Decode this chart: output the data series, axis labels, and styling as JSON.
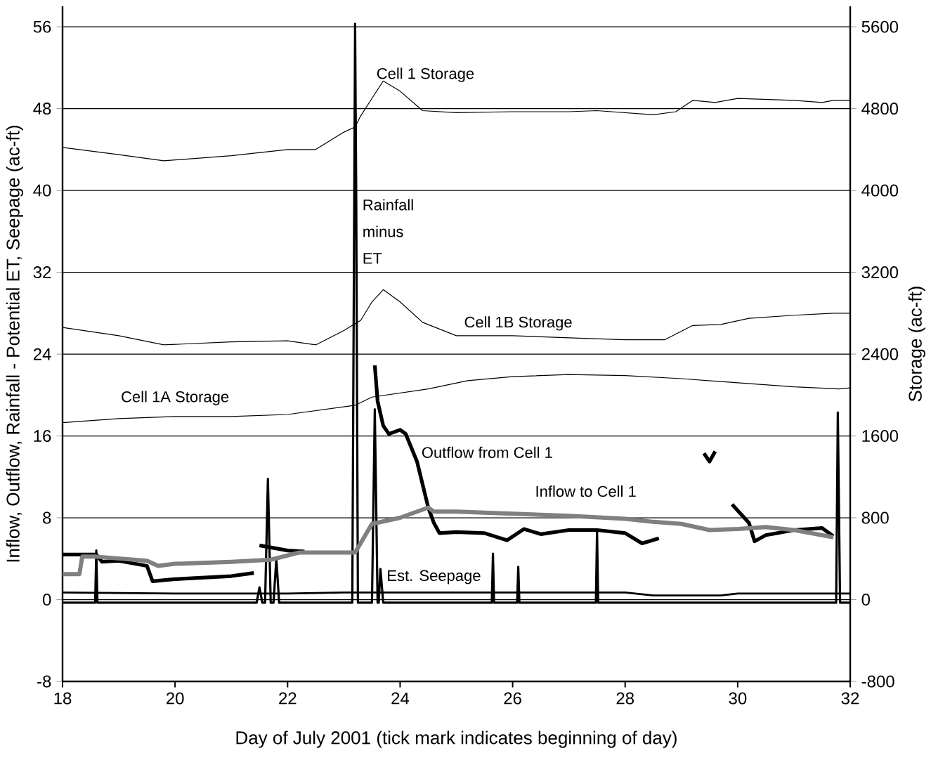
{
  "chart_data": {
    "type": "line",
    "xlabel": "Day of July 2001 (tick mark indicates beginning of day)",
    "ylabel": "Inflow, Outflow, Rainfall - Potential ET, Seepage (ac-ft)",
    "y2label": "Storage (ac-ft)",
    "xlim": [
      18,
      32
    ],
    "xticks": [
      18,
      20,
      22,
      24,
      26,
      28,
      30,
      32
    ],
    "ylim": [
      -8,
      58
    ],
    "yticks": [
      -8,
      0,
      8,
      16,
      24,
      32,
      40,
      48,
      56
    ],
    "y2lim": [
      -800,
      5800
    ],
    "y2ticks": [
      -800,
      0,
      800,
      1600,
      2400,
      3200,
      4000,
      4800,
      5600
    ],
    "grid": "y",
    "line_style": "solid",
    "series": [
      {
        "name": "Cell 1 Storage",
        "axis": "y2",
        "color": "#000000",
        "x": [
          18,
          19,
          19.8,
          21,
          22,
          22.5,
          23,
          23.2,
          23.3,
          23.5,
          23.7,
          24,
          24.4,
          25,
          26,
          27,
          27.5,
          28.5,
          28.9,
          29.2,
          29.6,
          30,
          31,
          31.5,
          31.7,
          32
        ],
        "values": [
          4420,
          4350,
          4290,
          4340,
          4400,
          4400,
          4570,
          4620,
          4730,
          4900,
          5070,
          4970,
          4780,
          4760,
          4770,
          4770,
          4780,
          4740,
          4770,
          4880,
          4860,
          4900,
          4880,
          4860,
          4880,
          4880
        ]
      },
      {
        "name": "Cell 1B Storage",
        "axis": "y2",
        "color": "#000000",
        "x": [
          18,
          19,
          19.8,
          21,
          22,
          22.5,
          23,
          23.3,
          23.5,
          23.7,
          24,
          24.4,
          25,
          26,
          27,
          28,
          28.7,
          29.2,
          29.7,
          30.2,
          31,
          31.7,
          32
        ],
        "values": [
          2660,
          2580,
          2490,
          2520,
          2530,
          2490,
          2630,
          2730,
          2910,
          3030,
          2910,
          2710,
          2580,
          2580,
          2560,
          2540,
          2540,
          2680,
          2690,
          2750,
          2780,
          2800,
          2800
        ]
      },
      {
        "name": "Cell 1A Storage",
        "axis": "y2",
        "color": "#000000",
        "x": [
          18,
          19,
          20,
          21,
          22,
          23.2,
          23.5,
          24.5,
          25.2,
          26,
          27,
          28,
          29,
          30,
          31,
          31.8,
          32
        ],
        "values": [
          1730,
          1770,
          1790,
          1790,
          1810,
          1900,
          1980,
          2060,
          2140,
          2180,
          2200,
          2190,
          2160,
          2120,
          2080,
          2060,
          2070
        ]
      },
      {
        "name": "Rainfall minus ET",
        "color": "#000000",
        "x": [
          18,
          18.58,
          18.6,
          18.62,
          21.45,
          21.5,
          21.55,
          21.6,
          21.65,
          21.7,
          21.75,
          21.8,
          21.85,
          23.15,
          23.2,
          23.22,
          23.25,
          23.5,
          23.55,
          23.6,
          23.62,
          23.65,
          23.7,
          25.63,
          25.65,
          25.67,
          26.08,
          26.1,
          26.12,
          27.48,
          27.5,
          27.52,
          31.75,
          31.78,
          31.82,
          32
        ],
        "values": [
          -0.3,
          -0.3,
          4.8,
          -0.3,
          -0.3,
          1.2,
          -0.3,
          -0.3,
          11.8,
          -0.3,
          -0.3,
          4,
          -0.3,
          -0.3,
          56.3,
          39.3,
          -0.3,
          -0.3,
          18.6,
          -0.3,
          -0.3,
          3,
          -0.3,
          -0.3,
          4.5,
          -0.3,
          -0.3,
          3.2,
          -0.3,
          -0.3,
          6.7,
          -0.3,
          -0.3,
          18.3,
          -0.3,
          -0.3
        ]
      },
      {
        "name": "Est. Seepage",
        "color": "#000000",
        "x": [
          18,
          20,
          22,
          23,
          24,
          26,
          28,
          28.5,
          29.7,
          30,
          32
        ],
        "values": [
          0.7,
          0.6,
          0.6,
          0.7,
          0.7,
          0.7,
          0.7,
          0.4,
          0.4,
          0.6,
          0.6
        ]
      },
      {
        "name": "Outflow from Cell 1",
        "color": "#000000",
        "x": [
          18,
          18.6,
          18.7,
          19,
          19.5,
          19.6,
          20,
          21,
          21.4,
          21.45,
          21.5,
          22,
          22.3,
          23.4,
          23.55,
          23.6,
          23.7,
          23.8,
          24,
          24.1,
          24.3,
          24.5,
          24.6,
          24.7,
          25,
          25.5,
          25.9,
          26.2,
          26.5,
          27,
          27.5,
          28,
          28.3,
          28.6,
          29,
          29.4,
          29.5,
          29.6,
          29.8,
          29.9,
          30.2,
          30.3,
          30.5,
          31,
          31.5,
          31.7
        ],
        "values": [
          4.4,
          4.4,
          3.7,
          3.8,
          3.3,
          1.8,
          2,
          2.3,
          2.6,
          null,
          5.3,
          4.8,
          4.7,
          null,
          22.9,
          19.4,
          17,
          16.2,
          16.6,
          16.2,
          13.5,
          9,
          7.5,
          6.5,
          6.6,
          6.5,
          5.8,
          6.9,
          6.4,
          6.8,
          6.8,
          6.5,
          5.5,
          6,
          null,
          14.3,
          13.5,
          14.5,
          null,
          9.3,
          7.5,
          5.7,
          6.3,
          6.8,
          7,
          6.2
        ]
      },
      {
        "name": "Inflow to Cell 1",
        "color": "#808080",
        "x": [
          18,
          18.3,
          18.35,
          18.6,
          19.5,
          19.7,
          20,
          21,
          21.7,
          22.2,
          22.8,
          23.2,
          23.5,
          24,
          24.5,
          24.6,
          25,
          26,
          27,
          28,
          28.5,
          29,
          29.5,
          30,
          30.5,
          31,
          31.7
        ],
        "values": [
          2.5,
          2.5,
          4.2,
          4.2,
          3.8,
          3.3,
          3.5,
          3.7,
          3.9,
          4.6,
          4.6,
          4.6,
          7.4,
          8,
          9,
          8.6,
          8.6,
          8.4,
          8.2,
          7.9,
          7.6,
          7.4,
          6.8,
          6.9,
          7.1,
          6.8,
          6.1
        ]
      }
    ]
  }
}
